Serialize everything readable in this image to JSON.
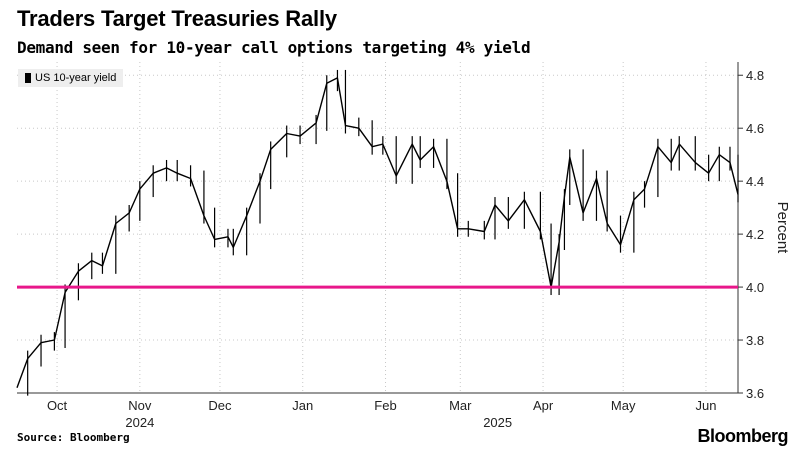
{
  "title": "Traders Target Treasuries Rally",
  "subtitle": "Demand seen for 10-year call options targeting 4% yield",
  "source": "Source: Bloomberg",
  "brand": "Bloomberg",
  "colors": {
    "series": "#000000",
    "reference_line": "#e8178a",
    "grid": "#c8c8c8"
  },
  "chart_data": {
    "type": "line",
    "style": "candlestick-like daily high-low bars",
    "ylabel": "Percent",
    "ylim": [
      3.6,
      4.85
    ],
    "yticks": [
      "3.6",
      "3.8",
      "4.0",
      "4.2",
      "4.4",
      "4.6",
      "4.8"
    ],
    "y_axis_side": "right",
    "grid": "dotted",
    "legend_position": "top-left",
    "x_ticks": [
      {
        "label": "Oct",
        "date": "2024-10-01"
      },
      {
        "label": "Nov",
        "date": "2024-11-01"
      },
      {
        "label": "Dec",
        "date": "2024-12-01"
      },
      {
        "label": "Jan",
        "date": "2025-01-01"
      },
      {
        "label": "Feb",
        "date": "2025-02-01"
      },
      {
        "label": "Mar",
        "date": "2025-03-01"
      },
      {
        "label": "Apr",
        "date": "2025-04-01"
      },
      {
        "label": "May",
        "date": "2025-05-01"
      },
      {
        "label": "Jun",
        "date": "2025-06-01"
      }
    ],
    "year_labels": [
      {
        "label": "2024",
        "date": "2024-11-01"
      },
      {
        "label": "2025",
        "date": "2025-03-15"
      }
    ],
    "x_range": [
      "2024-09-16",
      "2025-06-13"
    ],
    "reference_line": {
      "value": 4.0
    },
    "series": [
      {
        "name": "US 10-year yield",
        "points": [
          [
            "2024-09-16",
            3.62
          ],
          [
            "2024-09-20",
            3.73
          ],
          [
            "2024-09-25",
            3.79
          ],
          [
            "2024-09-30",
            3.8
          ],
          [
            "2024-10-04",
            3.98
          ],
          [
            "2024-10-09",
            4.06
          ],
          [
            "2024-10-14",
            4.1
          ],
          [
            "2024-10-18",
            4.08
          ],
          [
            "2024-10-23",
            4.24
          ],
          [
            "2024-10-28",
            4.28
          ],
          [
            "2024-11-01",
            4.37
          ],
          [
            "2024-11-06",
            4.43
          ],
          [
            "2024-11-11",
            4.45
          ],
          [
            "2024-11-15",
            4.43
          ],
          [
            "2024-11-20",
            4.41
          ],
          [
            "2024-11-25",
            4.27
          ],
          [
            "2024-11-29",
            4.18
          ],
          [
            "2024-12-04",
            4.19
          ],
          [
            "2024-12-06",
            4.15
          ],
          [
            "2024-12-11",
            4.27
          ],
          [
            "2024-12-16",
            4.4
          ],
          [
            "2024-12-20",
            4.52
          ],
          [
            "2024-12-26",
            4.58
          ],
          [
            "2024-12-31",
            4.57
          ],
          [
            "2025-01-06",
            4.62
          ],
          [
            "2025-01-10",
            4.77
          ],
          [
            "2025-01-14",
            4.79
          ],
          [
            "2025-01-17",
            4.61
          ],
          [
            "2025-01-22",
            4.6
          ],
          [
            "2025-01-27",
            4.53
          ],
          [
            "2025-01-31",
            4.54
          ],
          [
            "2025-02-05",
            4.42
          ],
          [
            "2025-02-11",
            4.54
          ],
          [
            "2025-02-14",
            4.48
          ],
          [
            "2025-02-19",
            4.53
          ],
          [
            "2025-02-24",
            4.4
          ],
          [
            "2025-02-28",
            4.22
          ],
          [
            "2025-03-04",
            4.22
          ],
          [
            "2025-03-10",
            4.21
          ],
          [
            "2025-03-14",
            4.31
          ],
          [
            "2025-03-19",
            4.25
          ],
          [
            "2025-03-25",
            4.33
          ],
          [
            "2025-03-31",
            4.21
          ],
          [
            "2025-04-04",
            4.0
          ],
          [
            "2025-04-07",
            4.17
          ],
          [
            "2025-04-09",
            4.34
          ],
          [
            "2025-04-11",
            4.49
          ],
          [
            "2025-04-16",
            4.28
          ],
          [
            "2025-04-21",
            4.41
          ],
          [
            "2025-04-25",
            4.24
          ],
          [
            "2025-04-30",
            4.16
          ],
          [
            "2025-05-05",
            4.33
          ],
          [
            "2025-05-09",
            4.37
          ],
          [
            "2025-05-14",
            4.53
          ],
          [
            "2025-05-19",
            4.47
          ],
          [
            "2025-05-22",
            4.54
          ],
          [
            "2025-05-28",
            4.47
          ],
          [
            "2025-06-02",
            4.43
          ],
          [
            "2025-06-06",
            4.5
          ],
          [
            "2025-06-10",
            4.47
          ],
          [
            "2025-06-13",
            4.35
          ]
        ]
      }
    ]
  }
}
